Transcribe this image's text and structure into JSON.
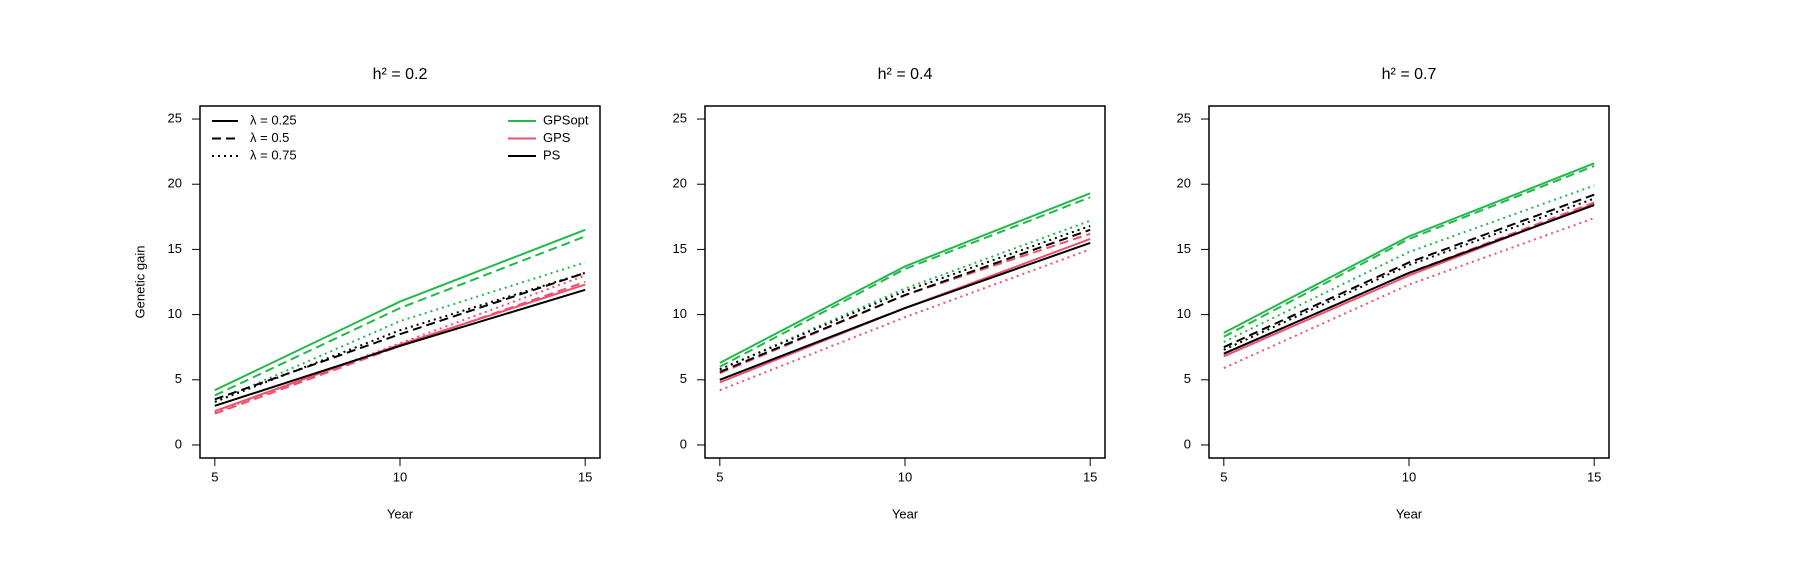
{
  "chart_data": [
    {
      "type": "line",
      "title": "h² = 0.2",
      "xlabel": "Year",
      "ylabel": "Genetic gain",
      "x": [
        5,
        10,
        15
      ],
      "xlim": [
        4.6,
        15.4
      ],
      "ylim": [
        -1,
        26
      ],
      "xticks": [
        5,
        10,
        15
      ],
      "yticks": [
        0,
        5,
        10,
        15,
        20,
        25
      ],
      "series": [
        {
          "color": "#22b84a",
          "dash": "solid",
          "values": [
            4.2,
            11.0,
            16.5
          ]
        },
        {
          "color": "#22b84a",
          "dash": "dashed",
          "values": [
            3.8,
            10.5,
            16.0
          ]
        },
        {
          "color": "#22b84a",
          "dash": "dotted",
          "values": [
            3.3,
            9.5,
            14.0
          ]
        },
        {
          "color": "#f0506e",
          "dash": "solid",
          "values": [
            2.6,
            7.7,
            12.3
          ]
        },
        {
          "color": "#f0506e",
          "dash": "dashed",
          "values": [
            2.4,
            7.6,
            12.5
          ]
        },
        {
          "color": "#f0506e",
          "dash": "dotted",
          "values": [
            2.5,
            7.8,
            13.0
          ]
        },
        {
          "color": "#000000",
          "dash": "solid",
          "values": [
            3.0,
            7.6,
            11.9
          ]
        },
        {
          "color": "#000000",
          "dash": "dashed",
          "values": [
            3.5,
            8.5,
            13.2
          ]
        },
        {
          "color": "#000000",
          "dash": "dotted",
          "values": [
            3.3,
            8.8,
            13.2
          ]
        }
      ],
      "line_legend": [
        {
          "label": "λ = 0.25",
          "dash": "solid"
        },
        {
          "label": "λ = 0.5",
          "dash": "dashed"
        },
        {
          "label": "λ = 0.75",
          "dash": "dotted"
        }
      ],
      "color_legend": [
        {
          "label": "GPSopt",
          "color": "#22b84a"
        },
        {
          "label": "GPS",
          "color": "#f0506e"
        },
        {
          "label": "PS",
          "color": "#000000"
        }
      ]
    },
    {
      "type": "line",
      "title": "h² = 0.4",
      "xlabel": "Year",
      "x": [
        5,
        10,
        15
      ],
      "xlim": [
        4.6,
        15.4
      ],
      "ylim": [
        -1,
        26
      ],
      "xticks": [
        5,
        10,
        15
      ],
      "yticks": [
        0,
        5,
        10,
        15,
        20,
        25
      ],
      "series": [
        {
          "color": "#22b84a",
          "dash": "solid",
          "values": [
            6.3,
            13.7,
            19.3
          ]
        },
        {
          "color": "#22b84a",
          "dash": "dashed",
          "values": [
            6.0,
            13.5,
            19.0
          ]
        },
        {
          "color": "#22b84a",
          "dash": "dotted",
          "values": [
            5.8,
            12.0,
            17.2
          ]
        },
        {
          "color": "#f0506e",
          "dash": "solid",
          "values": [
            4.8,
            10.5,
            15.8
          ]
        },
        {
          "color": "#f0506e",
          "dash": "dashed",
          "values": [
            5.5,
            11.5,
            16.2
          ]
        },
        {
          "color": "#f0506e",
          "dash": "dotted",
          "values": [
            4.2,
            9.8,
            15.0
          ]
        },
        {
          "color": "#000000",
          "dash": "solid",
          "values": [
            5.0,
            10.5,
            15.5
          ]
        },
        {
          "color": "#000000",
          "dash": "dashed",
          "values": [
            5.6,
            11.5,
            16.5
          ]
        },
        {
          "color": "#000000",
          "dash": "dotted",
          "values": [
            5.8,
            11.8,
            16.8
          ]
        }
      ]
    },
    {
      "type": "line",
      "title": "h² = 0.7",
      "xlabel": "Year",
      "x": [
        5,
        10,
        15
      ],
      "xlim": [
        4.6,
        15.4
      ],
      "ylim": [
        -1,
        26
      ],
      "xticks": [
        5,
        10,
        15
      ],
      "yticks": [
        0,
        5,
        10,
        15,
        20,
        25
      ],
      "series": [
        {
          "color": "#22b84a",
          "dash": "solid",
          "values": [
            8.6,
            16.0,
            21.6
          ]
        },
        {
          "color": "#22b84a",
          "dash": "dashed",
          "values": [
            8.3,
            15.8,
            21.4
          ]
        },
        {
          "color": "#22b84a",
          "dash": "dotted",
          "values": [
            7.9,
            14.8,
            19.9
          ]
        },
        {
          "color": "#f0506e",
          "dash": "solid",
          "values": [
            6.8,
            13.0,
            18.5
          ]
        },
        {
          "color": "#f0506e",
          "dash": "dashed",
          "values": [
            7.0,
            13.2,
            18.6
          ]
        },
        {
          "color": "#f0506e",
          "dash": "dotted",
          "values": [
            5.9,
            12.3,
            17.4
          ]
        },
        {
          "color": "#000000",
          "dash": "solid",
          "values": [
            7.0,
            13.2,
            18.4
          ]
        },
        {
          "color": "#000000",
          "dash": "dashed",
          "values": [
            7.5,
            14.0,
            19.2
          ]
        },
        {
          "color": "#000000",
          "dash": "dotted",
          "values": [
            7.3,
            13.8,
            18.9
          ]
        }
      ]
    }
  ]
}
